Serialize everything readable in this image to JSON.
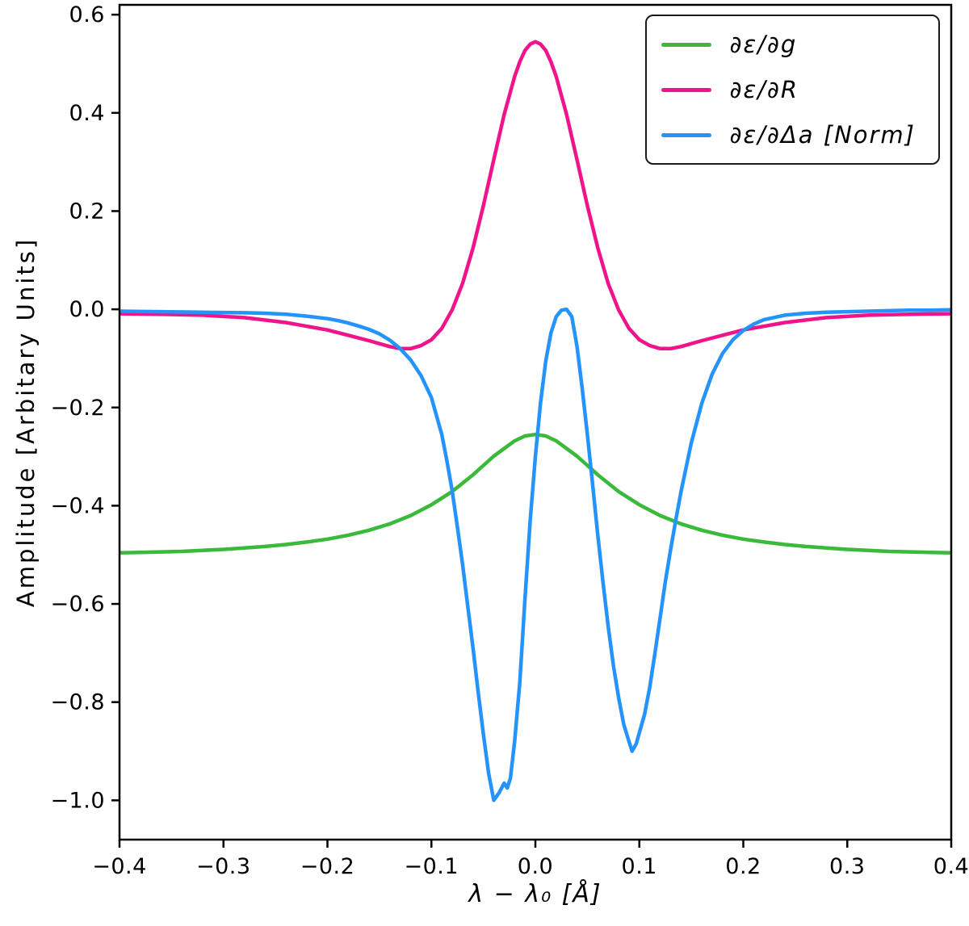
{
  "chart_data": {
    "type": "line",
    "title": "",
    "xlabel": "λ − λ₀ [Å]",
    "ylabel": "Amplitude [Arbitary Units]",
    "xlim": [
      -0.4,
      0.4
    ],
    "ylim": [
      -1.08,
      0.62
    ],
    "grid": false,
    "legend": {
      "position": "upper right",
      "border": true
    },
    "xtick_values": [
      -0.4,
      -0.3,
      -0.2,
      -0.1,
      0.0,
      0.1,
      0.2,
      0.3,
      0.4
    ],
    "xtick_labels": [
      "−0.4",
      "−0.3",
      "−0.2",
      "−0.1",
      "0.0",
      "0.1",
      "0.2",
      "0.3",
      "0.4"
    ],
    "ytick_values": [
      0.6,
      0.4,
      0.2,
      0.0,
      -0.2,
      -0.4,
      -0.6,
      -0.8,
      -1.0
    ],
    "ytick_labels": [
      "0.6",
      "0.4",
      "0.2",
      "0.0",
      "−0.2",
      "−0.4",
      "−0.6",
      "−0.8",
      "−1.0"
    ],
    "series": [
      {
        "name": "∂ε/∂g",
        "color": "#3ab93a",
        "linewidth": 4.5,
        "x": [
          -0.4,
          -0.38,
          -0.36,
          -0.34,
          -0.32,
          -0.3,
          -0.28,
          -0.26,
          -0.24,
          -0.22,
          -0.2,
          -0.18,
          -0.16,
          -0.14,
          -0.12,
          -0.1,
          -0.08,
          -0.06,
          -0.04,
          -0.02,
          -0.01,
          0.0,
          0.01,
          0.02,
          0.04,
          0.06,
          0.08,
          0.1,
          0.12,
          0.14,
          0.16,
          0.18,
          0.2,
          0.22,
          0.24,
          0.26,
          0.28,
          0.3,
          0.32,
          0.34,
          0.36,
          0.38,
          0.4
        ],
        "y": [
          -0.496,
          -0.495,
          -0.494,
          -0.493,
          -0.491,
          -0.489,
          -0.486,
          -0.483,
          -0.479,
          -0.474,
          -0.468,
          -0.46,
          -0.45,
          -0.437,
          -0.42,
          -0.398,
          -0.371,
          -0.337,
          -0.299,
          -0.268,
          -0.258,
          -0.255,
          -0.258,
          -0.268,
          -0.299,
          -0.337,
          -0.371,
          -0.398,
          -0.42,
          -0.437,
          -0.45,
          -0.46,
          -0.468,
          -0.474,
          -0.479,
          -0.483,
          -0.486,
          -0.489,
          -0.491,
          -0.493,
          -0.494,
          -0.495,
          -0.496
        ]
      },
      {
        "name": "∂ε/∂R",
        "color": "#f0148c",
        "linewidth": 4.5,
        "x": [
          -0.4,
          -0.36,
          -0.32,
          -0.28,
          -0.24,
          -0.2,
          -0.18,
          -0.16,
          -0.14,
          -0.13,
          -0.12,
          -0.11,
          -0.1,
          -0.09,
          -0.08,
          -0.07,
          -0.06,
          -0.05,
          -0.04,
          -0.03,
          -0.02,
          -0.015,
          -0.01,
          -0.005,
          0.0,
          0.005,
          0.01,
          0.015,
          0.02,
          0.03,
          0.04,
          0.05,
          0.06,
          0.07,
          0.08,
          0.09,
          0.1,
          0.11,
          0.12,
          0.13,
          0.14,
          0.16,
          0.18,
          0.2,
          0.24,
          0.28,
          0.32,
          0.36,
          0.4
        ],
        "y": [
          -0.009,
          -0.01,
          -0.012,
          -0.017,
          -0.027,
          -0.042,
          -0.053,
          -0.064,
          -0.076,
          -0.08,
          -0.08,
          -0.074,
          -0.062,
          -0.039,
          -0.001,
          0.053,
          0.125,
          0.211,
          0.305,
          0.397,
          0.474,
          0.504,
          0.527,
          0.54,
          0.545,
          0.54,
          0.527,
          0.504,
          0.474,
          0.397,
          0.305,
          0.211,
          0.125,
          0.053,
          -0.001,
          -0.039,
          -0.062,
          -0.074,
          -0.08,
          -0.08,
          -0.076,
          -0.064,
          -0.053,
          -0.042,
          -0.027,
          -0.017,
          -0.012,
          -0.01,
          -0.009
        ]
      },
      {
        "name": "∂ε/∂Δa [Norm]",
        "color": "#2493fb",
        "linewidth": 4.5,
        "x": [
          -0.4,
          -0.36,
          -0.32,
          -0.28,
          -0.26,
          -0.24,
          -0.22,
          -0.2,
          -0.19,
          -0.18,
          -0.17,
          -0.16,
          -0.15,
          -0.14,
          -0.13,
          -0.12,
          -0.11,
          -0.1,
          -0.09,
          -0.085,
          -0.08,
          -0.075,
          -0.07,
          -0.065,
          -0.06,
          -0.055,
          -0.05,
          -0.045,
          -0.04,
          -0.035,
          -0.03,
          -0.027,
          -0.024,
          -0.02,
          -0.015,
          -0.01,
          -0.005,
          0.0,
          0.005,
          0.01,
          0.015,
          0.02,
          0.025,
          0.03,
          0.035,
          0.04,
          0.045,
          0.05,
          0.055,
          0.06,
          0.065,
          0.07,
          0.075,
          0.08,
          0.085,
          0.09,
          0.093,
          0.097,
          0.1,
          0.105,
          0.11,
          0.115,
          0.12,
          0.125,
          0.13,
          0.135,
          0.14,
          0.15,
          0.16,
          0.17,
          0.18,
          0.19,
          0.2,
          0.21,
          0.22,
          0.24,
          0.26,
          0.28,
          0.3,
          0.32,
          0.34,
          0.36,
          0.38,
          0.4
        ],
        "y": [
          -0.004,
          -0.005,
          -0.006,
          -0.007,
          -0.008,
          -0.01,
          -0.014,
          -0.019,
          -0.023,
          -0.028,
          -0.034,
          -0.041,
          -0.05,
          -0.063,
          -0.08,
          -0.103,
          -0.135,
          -0.18,
          -0.255,
          -0.31,
          -0.37,
          -0.443,
          -0.52,
          -0.605,
          -0.69,
          -0.78,
          -0.865,
          -0.945,
          -1.0,
          -0.985,
          -0.965,
          -0.975,
          -0.955,
          -0.88,
          -0.76,
          -0.59,
          -0.43,
          -0.3,
          -0.19,
          -0.105,
          -0.048,
          -0.015,
          -0.002,
          0.0,
          -0.015,
          -0.075,
          -0.16,
          -0.255,
          -0.355,
          -0.46,
          -0.555,
          -0.645,
          -0.725,
          -0.79,
          -0.845,
          -0.88,
          -0.9,
          -0.885,
          -0.862,
          -0.825,
          -0.77,
          -0.7,
          -0.628,
          -0.555,
          -0.49,
          -0.43,
          -0.372,
          -0.272,
          -0.192,
          -0.132,
          -0.09,
          -0.062,
          -0.043,
          -0.03,
          -0.021,
          -0.012,
          -0.008,
          -0.006,
          -0.005,
          -0.004,
          -0.003,
          -0.002,
          -0.002,
          -0.001
        ]
      }
    ]
  }
}
